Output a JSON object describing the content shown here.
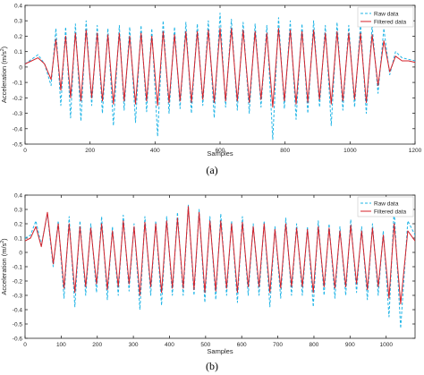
{
  "chart_data": [
    {
      "type": "line",
      "panel_label": "(a)",
      "xlabel": "Samples",
      "ylabel": "Acceleration (m/s",
      "ylabel_sup": "2",
      "ylabel_tail": ")",
      "xlim": [
        0,
        1200
      ],
      "ylim": [
        -0.5,
        0.4
      ],
      "xticks": [
        0,
        200,
        400,
        600,
        800,
        1000,
        1200
      ],
      "yticks": [
        -0.5,
        -0.4,
        -0.3,
        -0.2,
        -0.1,
        0,
        0.1,
        0.2,
        0.3,
        0.4
      ],
      "legend_position": "top-right",
      "series": [
        {
          "name": "Raw data",
          "color": "#1fb4e6",
          "style": "dashed",
          "x": [
            0,
            20,
            40,
            60,
            80,
            95,
            110,
            125,
            140,
            155,
            172,
            188,
            205,
            222,
            238,
            255,
            272,
            290,
            305,
            322,
            340,
            357,
            374,
            390,
            408,
            425,
            443,
            460,
            477,
            495,
            512,
            530,
            547,
            564,
            582,
            600,
            617,
            635,
            653,
            671,
            690,
            708,
            726,
            744,
            762,
            780,
            798,
            816,
            834,
            852,
            870,
            888,
            906,
            924,
            942,
            960,
            978,
            996,
            1014,
            1032,
            1050,
            1068,
            1086,
            1104,
            1122,
            1140,
            1160,
            1180,
            1200
          ],
          "y": [
            0.02,
            0.05,
            0.08,
            0.02,
            -0.12,
            0.25,
            -0.25,
            0.26,
            -0.33,
            0.28,
            -0.35,
            0.3,
            -0.25,
            0.27,
            -0.3,
            0.25,
            -0.38,
            0.27,
            -0.28,
            0.26,
            -0.36,
            0.27,
            -0.29,
            0.25,
            -0.45,
            0.3,
            -0.3,
            0.26,
            -0.27,
            0.29,
            -0.3,
            0.28,
            -0.25,
            0.3,
            -0.33,
            0.35,
            -0.26,
            0.31,
            -0.28,
            0.29,
            -0.3,
            0.28,
            -0.26,
            0.27,
            -0.47,
            0.32,
            -0.27,
            0.3,
            -0.34,
            0.28,
            -0.3,
            0.3,
            -0.26,
            0.27,
            -0.38,
            0.29,
            -0.28,
            0.27,
            -0.26,
            0.28,
            -0.3,
            0.27,
            -0.17,
            0.25,
            -0.05,
            0.1,
            0.06,
            0.05,
            0.04
          ]
        },
        {
          "name": "Filtered data",
          "color": "#d4212a",
          "style": "solid",
          "x": [
            0,
            20,
            40,
            60,
            80,
            95,
            110,
            125,
            140,
            155,
            172,
            188,
            205,
            222,
            238,
            255,
            272,
            290,
            305,
            322,
            340,
            357,
            374,
            390,
            408,
            425,
            443,
            460,
            477,
            495,
            512,
            530,
            547,
            564,
            582,
            600,
            617,
            635,
            653,
            671,
            690,
            708,
            726,
            744,
            762,
            780,
            798,
            816,
            834,
            852,
            870,
            888,
            906,
            924,
            942,
            960,
            978,
            996,
            1014,
            1032,
            1050,
            1068,
            1086,
            1104,
            1122,
            1140,
            1160,
            1180,
            1200
          ],
          "y": [
            0.02,
            0.04,
            0.06,
            0.02,
            -0.08,
            0.18,
            -0.15,
            0.2,
            -0.2,
            0.22,
            -0.22,
            0.24,
            -0.2,
            0.22,
            -0.22,
            0.21,
            -0.24,
            0.22,
            -0.22,
            0.2,
            -0.24,
            0.22,
            -0.22,
            0.2,
            -0.25,
            0.23,
            -0.23,
            0.21,
            -0.22,
            0.23,
            -0.23,
            0.23,
            -0.21,
            0.24,
            -0.23,
            0.25,
            -0.22,
            0.25,
            -0.22,
            0.24,
            -0.23,
            0.23,
            -0.21,
            0.22,
            -0.26,
            0.25,
            -0.22,
            0.24,
            -0.24,
            0.23,
            -0.23,
            0.24,
            -0.21,
            0.22,
            -0.24,
            0.23,
            -0.22,
            0.22,
            -0.21,
            0.22,
            -0.23,
            0.21,
            -0.12,
            0.17,
            -0.03,
            0.07,
            0.04,
            0.04,
            0.03
          ]
        }
      ]
    },
    {
      "type": "line",
      "panel_label": "(b)",
      "xlabel": "Samples",
      "ylabel": "Acceleration (m/s",
      "ylabel_sup": "2",
      "ylabel_tail": ")",
      "xlim": [
        0,
        1080
      ],
      "ylim": [
        -0.6,
        0.4
      ],
      "xticks": [
        0,
        100,
        200,
        300,
        400,
        500,
        600,
        700,
        800,
        900,
        1000
      ],
      "yticks": [
        -0.6,
        -0.5,
        -0.4,
        -0.3,
        -0.2,
        -0.1,
        0,
        0.1,
        0.2,
        0.3,
        0.4
      ],
      "legend_position": "top-right",
      "series": [
        {
          "name": "Raw data",
          "color": "#1fb4e6",
          "style": "dashed",
          "x": [
            0,
            15,
            30,
            45,
            62,
            78,
            92,
            108,
            122,
            138,
            152,
            168,
            182,
            198,
            212,
            228,
            242,
            258,
            272,
            288,
            302,
            318,
            332,
            348,
            362,
            378,
            392,
            408,
            422,
            438,
            452,
            468,
            482,
            498,
            512,
            528,
            542,
            558,
            572,
            588,
            602,
            618,
            632,
            648,
            662,
            678,
            692,
            708,
            722,
            738,
            752,
            768,
            782,
            798,
            812,
            828,
            842,
            858,
            872,
            888,
            902,
            918,
            932,
            948,
            962,
            978,
            992,
            1008,
            1022,
            1040,
            1060,
            1080
          ],
          "y": [
            0.1,
            0.12,
            0.22,
            0.05,
            0.27,
            -0.1,
            0.22,
            -0.32,
            0.25,
            -0.38,
            0.22,
            -0.3,
            0.2,
            -0.28,
            0.25,
            -0.33,
            0.18,
            -0.3,
            0.26,
            -0.27,
            0.2,
            -0.4,
            0.25,
            -0.3,
            0.22,
            -0.37,
            0.25,
            -0.3,
            0.28,
            -0.3,
            0.33,
            -0.3,
            0.3,
            -0.35,
            0.25,
            -0.33,
            0.27,
            -0.3,
            0.22,
            -0.35,
            0.25,
            -0.3,
            0.2,
            -0.3,
            0.22,
            -0.38,
            0.18,
            -0.32,
            0.24,
            -0.3,
            0.2,
            -0.3,
            0.18,
            -0.38,
            0.22,
            -0.3,
            0.2,
            -0.32,
            0.18,
            -0.3,
            0.23,
            -0.28,
            0.18,
            -0.33,
            0.2,
            -0.3,
            0.15,
            -0.45,
            0.3,
            -0.53,
            0.22,
            0.12
          ]
        },
        {
          "name": "Filtered data",
          "color": "#d4212a",
          "style": "solid",
          "x": [
            0,
            15,
            30,
            45,
            62,
            78,
            92,
            108,
            122,
            138,
            152,
            168,
            182,
            198,
            212,
            228,
            242,
            258,
            272,
            288,
            302,
            318,
            332,
            348,
            362,
            378,
            392,
            408,
            422,
            438,
            452,
            468,
            482,
            498,
            512,
            528,
            542,
            558,
            572,
            588,
            602,
            618,
            632,
            648,
            662,
            678,
            692,
            708,
            722,
            738,
            752,
            768,
            782,
            798,
            812,
            828,
            842,
            858,
            872,
            888,
            902,
            918,
            932,
            948,
            962,
            978,
            992,
            1008,
            1022,
            1040,
            1060,
            1080
          ],
          "y": [
            0.08,
            0.1,
            0.18,
            0.04,
            0.28,
            -0.08,
            0.2,
            -0.25,
            0.2,
            -0.28,
            0.18,
            -0.24,
            0.17,
            -0.22,
            0.2,
            -0.26,
            0.15,
            -0.24,
            0.22,
            -0.22,
            0.18,
            -0.3,
            0.21,
            -0.24,
            0.2,
            -0.28,
            0.22,
            -0.25,
            0.24,
            -0.25,
            0.32,
            -0.26,
            0.28,
            -0.28,
            0.22,
            -0.27,
            0.22,
            -0.25,
            0.2,
            -0.28,
            0.21,
            -0.24,
            0.18,
            -0.24,
            0.2,
            -0.28,
            0.16,
            -0.25,
            0.2,
            -0.24,
            0.17,
            -0.24,
            0.16,
            -0.28,
            0.18,
            -0.24,
            0.17,
            -0.25,
            0.15,
            -0.24,
            0.19,
            -0.22,
            0.15,
            -0.26,
            0.17,
            -0.24,
            0.12,
            -0.32,
            0.2,
            -0.36,
            0.15,
            0.08
          ]
        }
      ]
    }
  ]
}
